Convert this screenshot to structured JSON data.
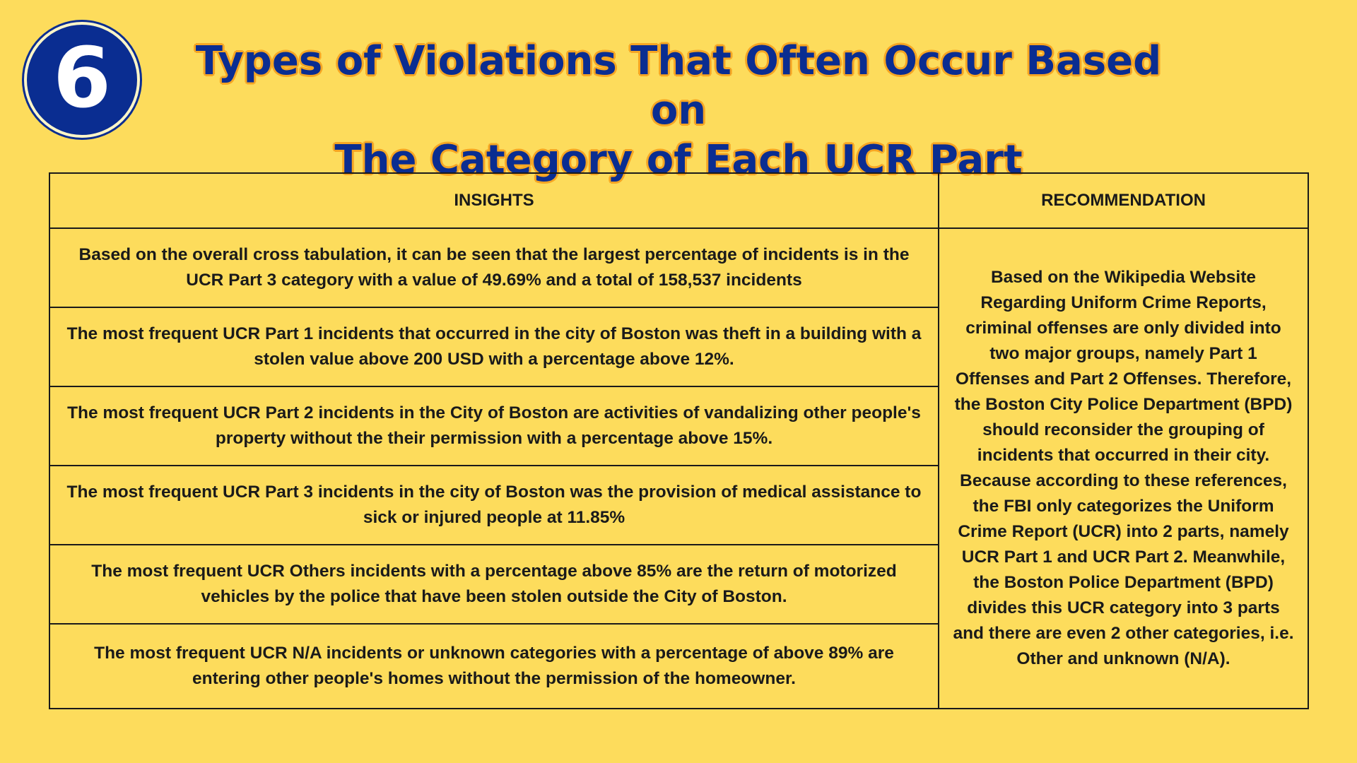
{
  "badge": {
    "number": "6"
  },
  "title": {
    "line1": "Types of Violations That Often Occur Based on",
    "line2": "The Category of Each UCR Part"
  },
  "table": {
    "headers": {
      "insights": "INSIGHTS",
      "recommendation": "RECOMMENDATION"
    },
    "insights": [
      "Based on the overall cross tabulation, it can be seen that the largest percentage of incidents is in the UCR Part 3 category with a value of 49.69% and a total of 158,537 incidents",
      "The most frequent UCR Part 1 incidents that occurred in the city of Boston was theft in a building with a stolen value above 200 USD with a percentage above 12%.",
      "The most frequent UCR Part 2 incidents in the City of Boston are activities of vandalizing other people's property without the their permission with a percentage above 15%.",
      "The most frequent UCR Part 3 incidents in the city of Boston was the provision of medical assistance to sick or injured people at 11.85%",
      "The most frequent UCR Others incidents with a percentage above 85%  are the return of motorized vehicles by the police that have been stolen outside the City of Boston.",
      "The most frequent UCR N/A incidents or unknown categories with a percentage of above 89% are entering other people's homes without the permission of the homeowner."
    ],
    "recommendation": "Based on the Wikipedia Website Regarding Uniform Crime Reports, criminal offenses are only divided into two major groups, namely Part 1 Offenses and Part 2 Offenses. Therefore, the Boston City Police Department (BPD) should reconsider the grouping of incidents that occurred in their city. Because according to these references, the FBI only categorizes the Uniform Crime Report (UCR) into 2 parts, namely UCR Part 1 and UCR Part 2. Meanwhile, the Boston Police Department (BPD) divides this UCR category into 3 parts and there are even 2 other categories, i.e. Other and unknown (N/A)."
  }
}
